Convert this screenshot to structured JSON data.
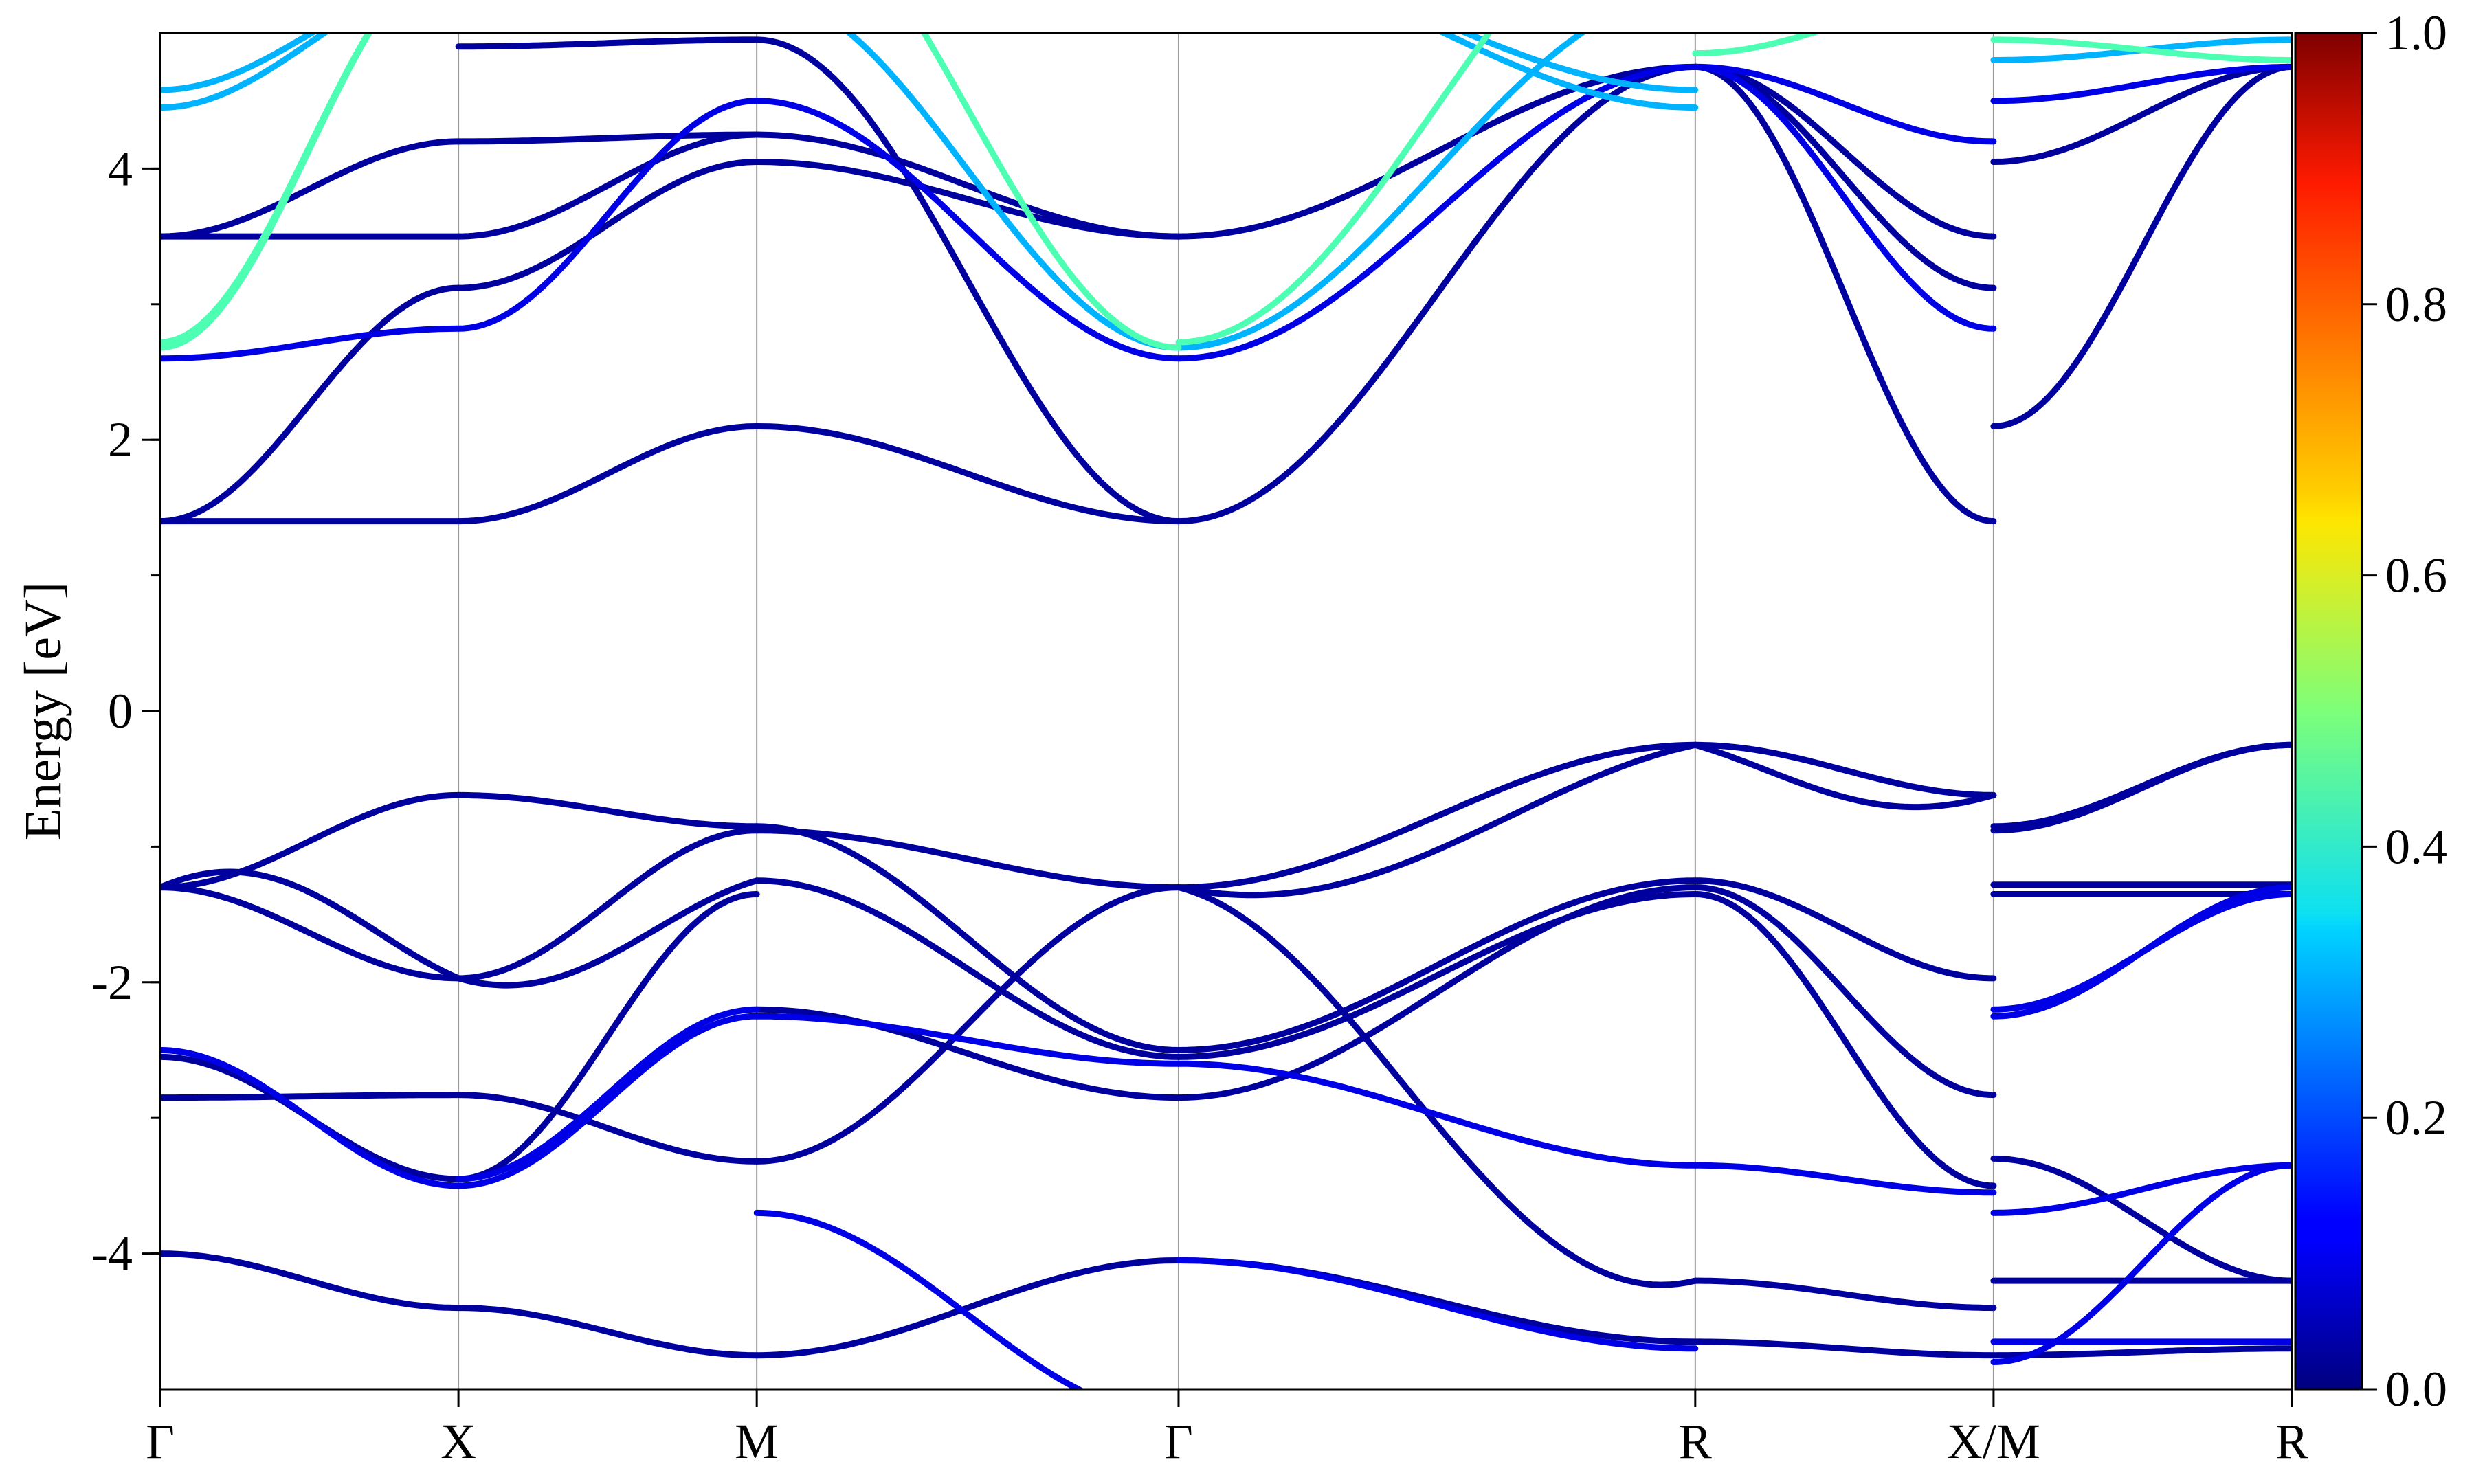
{
  "chart_data": {
    "type": "line",
    "title": "",
    "ylabel": "Energy [eV]",
    "xlabel": "",
    "ylim": [
      -5,
      5
    ],
    "yticks": [
      "-4",
      "-2",
      "0",
      "2",
      "4"
    ],
    "ytick_values": [
      -4,
      -2,
      0,
      2,
      4
    ],
    "minor_ytick_step": 1,
    "kpath": {
      "labels": [
        "Γ",
        "X",
        "M",
        "Γ",
        "R",
        "X/M",
        "R"
      ],
      "positions": [
        0,
        1,
        2,
        3.414,
        5.146,
        6.146,
        7.146
      ]
    },
    "colorbar": {
      "colormap": "jet",
      "range": [
        0,
        1
      ],
      "ticks": [
        "0.0",
        "0.2",
        "0.4",
        "0.6",
        "0.8",
        "1.0"
      ],
      "tick_values": [
        0.0,
        0.2,
        0.4,
        0.6,
        0.8,
        1.0
      ]
    },
    "grid": "vertical lines at high-symmetry points",
    "band_groups": [
      {
        "color_value": 0.03,
        "segments": [
          {
            "seg": 0,
            "start": 1.4,
            "end": 1.4,
            "amp": 0,
            "shape": "cos"
          },
          {
            "seg": 0,
            "start": 3.5,
            "end": 3.5,
            "amp": 0,
            "shape": "cos"
          },
          {
            "seg": 0,
            "start": 1.4,
            "end": 3.12,
            "amp": 0,
            "shape": "cos"
          },
          {
            "seg": 0,
            "start": 3.5,
            "end": 4.2,
            "amp": 0,
            "shape": "cos"
          },
          {
            "seg": 1,
            "start": 1.4,
            "end": 2.1,
            "amp": 0,
            "shape": "cos"
          },
          {
            "seg": 1,
            "start": 3.5,
            "end": 4.25,
            "amp": 0,
            "shape": "cos"
          },
          {
            "seg": 1,
            "start": 3.12,
            "end": 4.05,
            "amp": 0,
            "shape": "cos"
          },
          {
            "seg": 1,
            "start": 4.2,
            "end": 4.25,
            "amp": 0,
            "shape": "cos"
          },
          {
            "seg": 1,
            "start": 4.9,
            "end": 4.95,
            "amp": 0,
            "shape": "cos"
          },
          {
            "seg": 2,
            "start": 2.1,
            "end": 1.4,
            "amp": 0,
            "shape": "cos"
          },
          {
            "seg": 2,
            "start": 4.95,
            "end": 1.4,
            "amp": 0,
            "shape": "cos"
          },
          {
            "seg": 2,
            "start": 4.25,
            "end": 3.5,
            "amp": 0,
            "shape": "cos"
          },
          {
            "seg": 2,
            "start": 4.05,
            "end": 3.5,
            "amp": 0,
            "shape": "cos"
          },
          {
            "seg": 3,
            "start": 1.4,
            "end": 4.75,
            "amp": 0,
            "shape": "cos"
          },
          {
            "seg": 3,
            "start": 3.5,
            "end": 4.75,
            "amp": 0,
            "shape": "cos"
          },
          {
            "seg": 4,
            "start": 4.75,
            "end": 1.4,
            "amp": 0,
            "shape": "cos"
          },
          {
            "seg": 4,
            "start": 4.75,
            "end": 3.5,
            "amp": 0,
            "shape": "cos"
          },
          {
            "seg": 4,
            "start": 4.75,
            "end": 3.12,
            "amp": 0,
            "shape": "cos"
          },
          {
            "seg": 5,
            "start": 2.1,
            "end": 4.75,
            "amp": 0,
            "shape": "cos"
          },
          {
            "seg": 5,
            "start": 4.05,
            "end": 4.75,
            "amp": 0,
            "shape": "cos"
          },
          {
            "seg": 0,
            "start": -1.3,
            "end": -0.62,
            "amp": 0,
            "shape": "cos"
          },
          {
            "seg": 0,
            "start": -1.3,
            "end": -1.97,
            "amp": 0,
            "shape": "cos"
          },
          {
            "seg": 0,
            "start": -1.3,
            "end": -1.97,
            "amp": 0.3,
            "shape": "cos"
          },
          {
            "seg": 0,
            "start": -2.55,
            "end": -3.45,
            "amp": 0,
            "shape": "cos"
          },
          {
            "seg": 0,
            "start": -2.85,
            "end": -2.83,
            "amp": 0,
            "shape": "cos"
          },
          {
            "seg": 1,
            "start": -0.62,
            "end": -0.85,
            "amp": 0,
            "shape": "cos"
          },
          {
            "seg": 1,
            "start": -1.97,
            "end": -0.88,
            "amp": 0,
            "shape": "cos"
          },
          {
            "seg": 1,
            "start": -1.97,
            "end": -1.25,
            "amp": -0.2,
            "shape": "cos"
          },
          {
            "seg": 1,
            "start": -2.83,
            "end": -3.32,
            "amp": 0,
            "shape": "cos"
          },
          {
            "seg": 1,
            "start": -3.45,
            "end": -1.35,
            "amp": 0,
            "shape": "cos"
          },
          {
            "seg": 2,
            "start": -0.85,
            "end": -2.5,
            "amp": 0,
            "shape": "cos"
          },
          {
            "seg": 2,
            "start": -0.88,
            "end": -1.3,
            "amp": 0,
            "shape": "cos"
          },
          {
            "seg": 2,
            "start": -1.25,
            "end": -2.55,
            "amp": 0,
            "shape": "cos"
          },
          {
            "seg": 2,
            "start": -3.32,
            "end": -1.3,
            "amp": 0,
            "shape": "cos"
          },
          {
            "seg": 2,
            "start": -2.2,
            "end": -2.85,
            "amp": 0,
            "shape": "cos"
          },
          {
            "seg": 3,
            "start": -1.3,
            "end": -0.25,
            "amp": 0,
            "shape": "cos"
          },
          {
            "seg": 3,
            "start": -1.3,
            "end": -0.25,
            "amp": -0.25,
            "shape": "cos"
          },
          {
            "seg": 3,
            "start": -2.5,
            "end": -1.25,
            "amp": 0,
            "shape": "cos"
          },
          {
            "seg": 3,
            "start": -2.55,
            "end": -1.35,
            "amp": 0,
            "shape": "cos"
          },
          {
            "seg": 3,
            "start": -2.85,
            "end": -1.3,
            "amp": 0,
            "shape": "cos"
          },
          {
            "seg": 3,
            "start": -1.3,
            "end": -4.2,
            "amp": -0.3,
            "shape": "cos"
          },
          {
            "seg": 4,
            "start": -0.25,
            "end": -0.62,
            "amp": 0,
            "shape": "cos"
          },
          {
            "seg": 4,
            "start": -0.25,
            "end": -0.62,
            "amp": -0.2,
            "shape": "cos"
          },
          {
            "seg": 4,
            "start": -1.25,
            "end": -1.97,
            "amp": 0,
            "shape": "cos"
          },
          {
            "seg": 4,
            "start": -1.3,
            "end": -2.83,
            "amp": 0,
            "shape": "cos"
          },
          {
            "seg": 4,
            "start": -1.35,
            "end": -3.5,
            "amp": 0,
            "shape": "cos"
          },
          {
            "seg": 4,
            "start": -4.2,
            "end": -4.4,
            "amp": 0,
            "shape": "cos"
          },
          {
            "seg": 5,
            "start": -0.85,
            "end": -0.25,
            "amp": 0,
            "shape": "cos"
          },
          {
            "seg": 5,
            "start": -0.88,
            "end": -0.25,
            "amp": 0,
            "shape": "cos"
          },
          {
            "seg": 5,
            "start": -1.28,
            "end": -1.28,
            "amp": 0,
            "shape": "cos"
          },
          {
            "seg": 5,
            "start": -1.35,
            "end": -1.35,
            "amp": 0,
            "shape": "cos"
          },
          {
            "seg": 5,
            "start": -3.3,
            "end": -4.2,
            "amp": 0,
            "shape": "cos"
          },
          {
            "seg": 5,
            "start": -4.2,
            "end": -4.2,
            "amp": 0,
            "shape": "cos"
          },
          {
            "seg": 5,
            "start": -4.75,
            "end": -4.7,
            "amp": 0,
            "shape": "cos"
          },
          {
            "seg": 0,
            "start": -4.0,
            "end": -4.4,
            "amp": 0,
            "shape": "cos"
          },
          {
            "seg": 1,
            "start": -4.4,
            "end": -4.75,
            "amp": 0,
            "shape": "cos"
          },
          {
            "seg": 2,
            "start": -4.75,
            "end": -4.05,
            "amp": 0,
            "shape": "cos"
          },
          {
            "seg": 3,
            "start": -4.05,
            "end": -4.65,
            "amp": 0,
            "shape": "cos"
          },
          {
            "seg": 4,
            "start": -4.65,
            "end": -4.75,
            "amp": 0,
            "shape": "cos"
          }
        ]
      },
      {
        "color_value": 0.1,
        "segments": [
          {
            "seg": 0,
            "start": 2.6,
            "end": 2.82,
            "amp": 0,
            "shape": "cos"
          },
          {
            "seg": 1,
            "start": 2.82,
            "end": 4.5,
            "amp": 0,
            "shape": "cos"
          },
          {
            "seg": 2,
            "start": 4.5,
            "end": 2.6,
            "amp": 0,
            "shape": "cos"
          },
          {
            "seg": 3,
            "start": 2.6,
            "end": 4.75,
            "amp": 0,
            "shape": "cos"
          },
          {
            "seg": 4,
            "start": 4.75,
            "end": 2.82,
            "amp": 0,
            "shape": "cos"
          },
          {
            "seg": 4,
            "start": 4.75,
            "end": 4.2,
            "amp": 0,
            "shape": "cos"
          },
          {
            "seg": 5,
            "start": 4.5,
            "end": 4.75,
            "amp": 0,
            "shape": "cos"
          },
          {
            "seg": 0,
            "start": -2.5,
            "end": -3.5,
            "amp": 0,
            "shape": "cos"
          },
          {
            "seg": 1,
            "start": -3.5,
            "end": -2.25,
            "amp": 0,
            "shape": "cos"
          },
          {
            "seg": 1,
            "start": -3.45,
            "end": -2.2,
            "amp": 0,
            "shape": "cos"
          },
          {
            "seg": 2,
            "start": -2.25,
            "end": -2.6,
            "amp": 0,
            "shape": "cos"
          },
          {
            "seg": 2,
            "start": -3.7,
            "end": -5.2,
            "amp": 0,
            "shape": "cos"
          },
          {
            "seg": 3,
            "start": -2.6,
            "end": -3.35,
            "amp": 0,
            "shape": "cos"
          },
          {
            "seg": 3,
            "start": -4.05,
            "end": -4.7,
            "amp": 0,
            "shape": "cos"
          },
          {
            "seg": 4,
            "start": -3.35,
            "end": -3.55,
            "amp": 0,
            "shape": "cos"
          },
          {
            "seg": 5,
            "start": -2.2,
            "end": -1.35,
            "amp": 0,
            "shape": "cos"
          },
          {
            "seg": 5,
            "start": -2.25,
            "end": -1.3,
            "amp": 0,
            "shape": "cos"
          },
          {
            "seg": 5,
            "start": -3.7,
            "end": -3.35,
            "amp": 0,
            "shape": "cos"
          },
          {
            "seg": 5,
            "start": -4.8,
            "end": -3.35,
            "amp": 0,
            "shape": "cos"
          },
          {
            "seg": 5,
            "start": -4.65,
            "end": -4.65,
            "amp": 0,
            "shape": "cos"
          }
        ]
      },
      {
        "color_value": 0.3,
        "segments": [
          {
            "seg": 0,
            "start": 4.45,
            "end": 5.4,
            "amp": 0,
            "shape": "cos"
          },
          {
            "seg": 0,
            "start": 4.58,
            "end": 5.4,
            "amp": 0,
            "shape": "cos"
          },
          {
            "seg": 3,
            "start": 5.6,
            "end": 4.45,
            "amp": 0,
            "shape": "cos"
          },
          {
            "seg": 3,
            "start": 5.6,
            "end": 4.58,
            "amp": 0,
            "shape": "cos"
          },
          {
            "seg": 3,
            "start": 2.68,
            "end": 5.3,
            "amp": 0,
            "shape": "cos"
          },
          {
            "seg": 2,
            "start": 5.3,
            "end": 2.68,
            "amp": 0,
            "shape": "cos"
          },
          {
            "seg": 5,
            "start": 4.8,
            "end": 4.95,
            "amp": 0,
            "shape": "cos"
          }
        ]
      },
      {
        "color_value": 0.45,
        "segments": [
          {
            "seg": 0,
            "start": 2.68,
            "end": 5.6,
            "amp": 0,
            "shape": "cos"
          },
          {
            "seg": 0,
            "start": 2.72,
            "end": 5.6,
            "amp": 0,
            "shape": "cos"
          },
          {
            "seg": 2,
            "start": 6.2,
            "end": 2.68,
            "amp": 0,
            "shape": "cos"
          },
          {
            "seg": 3,
            "start": 2.72,
            "end": 6.2,
            "amp": 0,
            "shape": "cos"
          },
          {
            "seg": 4,
            "start": 4.85,
            "end": 5.3,
            "amp": 0,
            "shape": "cos"
          },
          {
            "seg": 5,
            "start": 4.95,
            "end": 4.8,
            "amp": 0,
            "shape": "cos"
          }
        ]
      }
    ]
  }
}
